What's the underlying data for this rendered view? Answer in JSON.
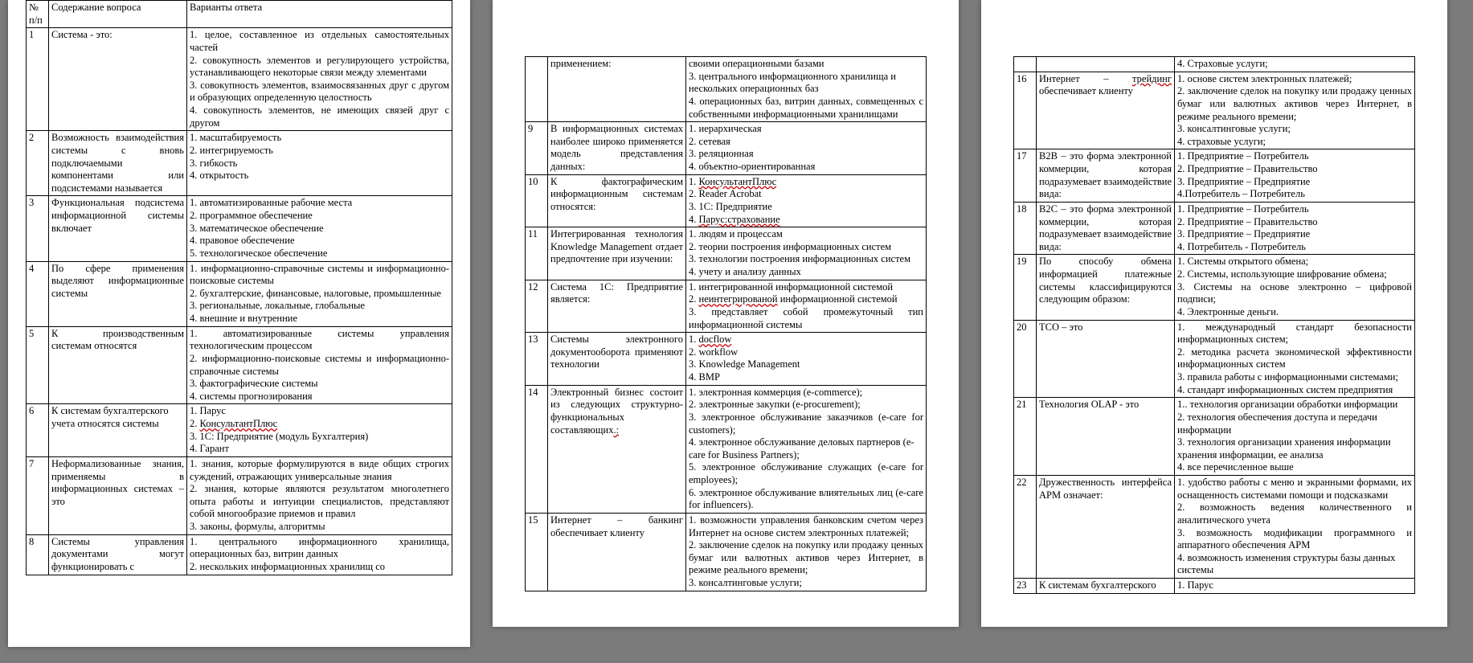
{
  "header": {
    "num": "№ п/п",
    "q": "Содержание вопроса",
    "a": "Варианты ответа"
  },
  "rows": [
    {
      "n": "1",
      "q": "Система - это:",
      "a": [
        "1. целое, составленное из отдельных самостоятельных частей",
        "2. совокупность элементов и регулирующего устройства, устанавливающего некоторые связи между элементами",
        "3. совокупность элементов, взаимосвязанных друг с другом и образующих определенную целостность",
        "4. совокупность элементов, не имеющих связей друг с другом"
      ],
      "just": [
        0,
        1,
        2,
        3
      ]
    },
    {
      "n": "2",
      "q": "Возможность взаимодействия системы с вновь подключаемыми компонентами или подсистемами называется",
      "qjust": true,
      "a": [
        "1. масштабируемость",
        "2. интегрируемость",
        "3. гибкость",
        "4. открытость"
      ]
    },
    {
      "n": "3",
      "q": "Функциональная подсистема информационной системы включает",
      "qjust": true,
      "a": [
        "1. автоматизированные рабочие места",
        "2. программное обеспечение",
        "3. математическое обеспечение",
        "4. правовое обеспечение",
        "5. технологическое обеспечение"
      ]
    },
    {
      "n": "4",
      "q": "По сфере применения выделяют информационные системы",
      "qjust": true,
      "a": [
        "1. информационно-справочные системы и информационно-поисковые системы",
        "2. бухгалтерские, финансовые, налоговые, промышленные",
        "3. региональные, локальные, глобальные",
        "4. внешние и внутренние"
      ],
      "just": [
        0,
        1
      ]
    },
    {
      "n": "5",
      "q": "К производственным системам относятся",
      "qjust": true,
      "a": [
        "1. автоматизированные системы управления технологическим процессом",
        "2. информационно-поисковые системы и информационно-справочные системы",
        "3. фактографические системы",
        "4. системы прогнозирования"
      ],
      "just": [
        0,
        1
      ]
    },
    {
      "n": "6",
      "q": "К системам бухгалтерского учета  относятся системы",
      "a": [
        "1. Парус",
        "2. <span class='err'>КонсультантПлюс</span>",
        "3. 1С: Предприятие (модуль Бухгалтерия)",
        "4. Гарант"
      ]
    },
    {
      "n": "7",
      "q": "Неформализованные знания, применяемы в информационных системах – это",
      "qjust": true,
      "a": [
        "1. знания, которые формулируются в виде общих строгих суждений, отражающих универсальные знания",
        "2. знания, которые являются результатом многолетнего опыта работы и интуиции специалистов, представляют собой многообразие приемов и правил",
        "3. законы, формулы, алгоритмы"
      ],
      "just": [
        0,
        1
      ]
    },
    {
      "n": "8",
      "q": "Системы управления документами могут функционировать с",
      "qjust": true,
      "a": [
        "1. центрального информационного хранилища, операционных баз, витрин данных",
        "2. нескольких информационных хранилищ со"
      ],
      "just": [
        0
      ]
    }
  ],
  "rows2": [
    {
      "cont": true,
      "n": "",
      "q": "применением:",
      "a": [
        "своими операционными базами",
        "3. центрального информационного хранилища и нескольких операционных баз",
        "4. операционных баз, витрин данных, совмещенных с собственными информационными хранилищами"
      ],
      "just": [
        2
      ]
    },
    {
      "n": "9",
      "q": "В информационных системах наиболее широко применяется модель представления данных:",
      "qjust": true,
      "a": [
        "1. иерархическая",
        "2. сетевая",
        "3. реляционная",
        "4. объектно-ориентированная"
      ]
    },
    {
      "n": "10",
      "q": "К фактографическим информационным системам относятся:",
      "qjust": true,
      "a": [
        "1. <span class='err'>КонсультантПлюс</span>",
        "2. Reader Acrobat",
        "3. 1С: Предприятие",
        "4. <span class='err'>Парус:страхование</span>"
      ]
    },
    {
      "n": "11",
      "q": "Интегрированная технология Knowledge Management отдает предпочтение при изучении:",
      "qjust": true,
      "a": [
        "1. людям и процессам",
        "2. теории построения информационных систем",
        "3. технологии построения информационных систем",
        "4. учету и анализу данных"
      ],
      "just": [
        2
      ]
    },
    {
      "n": "12",
      "q": "Система 1С: Предприятие является:",
      "qjust": true,
      "a": [
        "1. интегрированной информационной системой",
        "2. <span class='err'>неинтегрированой</span> информационной системой",
        "3. представляет собой промежуточный тип информационной системы"
      ],
      "just": [
        2
      ]
    },
    {
      "n": "13",
      "q": "Системы электронного документооборота применяют технологии",
      "qjust": true,
      "a": [
        "1. <span class='err'>docflow</span>",
        "2. workflow",
        "3. Knowledge Management",
        "4. BMP"
      ]
    },
    {
      "n": "14",
      "q": "Электронный бизнес состоит из следующих структурно-функциональных составляющих<span class='err'>.:</span>",
      "qjust": true,
      "a": [
        "1. электронная коммерция (e-commerce);",
        "2. электронные закупки (e-procurement);",
        "3. электронное обслуживание заказчиков (e-care for customers);",
        "4. электронное обслуживание деловых партнеров (e-care for Business Partners);",
        "5. электронное обслуживание служащих (e-care for employees);",
        "6. электронное обслуживание влиятельных лиц (e-care for influencers)."
      ],
      "just": [
        2,
        4,
        5
      ]
    },
    {
      "n": "15",
      "q": "Интернет – банкинг обеспечивает клиенту",
      "qjust": true,
      "a": [
        "1. возможности управления банковским счетом через Интернет на основе систем электронных платежей;",
        "2. заключение сделок на покупку или продажу ценных бумаг или валютных активов через Интернет, в режиме реального времени;",
        "3. консалтинговые услуги;"
      ],
      "just": [
        0,
        1
      ]
    }
  ],
  "rows3": [
    {
      "cont": true,
      "n": "",
      "q": "",
      "a": [
        "4. Страховые услуги;"
      ]
    },
    {
      "n": "16",
      "q": "Интернет – <span class='err'>трейдинг</span> обеспечивает клиенту",
      "qjust": true,
      "a": [
        "1. основе систем электронных платежей;",
        "2. заключение сделок на покупку или продажу ценных бумаг или валютных активов через Интернет, в режиме реального времени;",
        "3. консалтинговые услуги;",
        "4. страховые услуги;"
      ],
      "just": [
        1
      ]
    },
    {
      "n": "17",
      "q": "В2В – это форма электронной коммерции, которая подразумевает взаимодействие вида:",
      "qjust": true,
      "a": [
        "1. Предприятие – Потребитель",
        "2. Предприятие – Правительство",
        "3. Предприятие – Предприятие",
        "4.Потребитель – Потребитель"
      ]
    },
    {
      "n": "18",
      "q": "В2С – это форма электронной коммерции, которая подразумевает взаимодействие вида:",
      "qjust": true,
      "a": [
        "1. Предприятие – Потребитель",
        "2. Предприятие – Правительство",
        "3. Предприятие – Предприятие",
        "4.   Потребитель - Потребитель"
      ]
    },
    {
      "n": "19",
      "q": "По способу обмена информацией платежные системы классифицируются следующим образом:",
      "qjust": true,
      "a": [
        "1. Системы открытого обмена;",
        "2. Системы, использующие шифрование обмена;",
        "3. Системы на основе электронно – цифровой подписи;",
        "4. Электронные деньги."
      ],
      "just": [
        2
      ]
    },
    {
      "n": "20",
      "q": "ТСО – это",
      "a": [
        "1. международный стандарт безопасности информационных систем;",
        "2. методика расчета экономической эффективности информационных систем",
        "3. правила работы с информационными системами;",
        "4. стандарт информационных систем предприятия"
      ],
      "just": [
        0,
        1,
        2
      ]
    },
    {
      "n": "21",
      "q": "Технология OLAP - это",
      "a": [
        "1.. технология организации обработки информации",
        "2. технология обеспечения доступа и передачи информации",
        "3. технология организации хранения информации хранения информации, ее анализа",
        "4. все перечисленное выше"
      ]
    },
    {
      "n": "22",
      "q": "Дружественность интерфейса АРМ означает:",
      "qjust": true,
      "a": [
        "1. удобство работы с меню и экранными формами, их оснащенность системами помощи и подсказками",
        "2. возможность ведения количественного и аналитического учета",
        "3. возможность модификации программного и аппаратного обеспечения АРМ",
        "4. возможность изменения структуры базы данных системы"
      ],
      "just": [
        0,
        1,
        2
      ]
    },
    {
      "n": "23",
      "q": "К системам бухгалтерского",
      "a": [
        "1. Парус"
      ]
    }
  ]
}
